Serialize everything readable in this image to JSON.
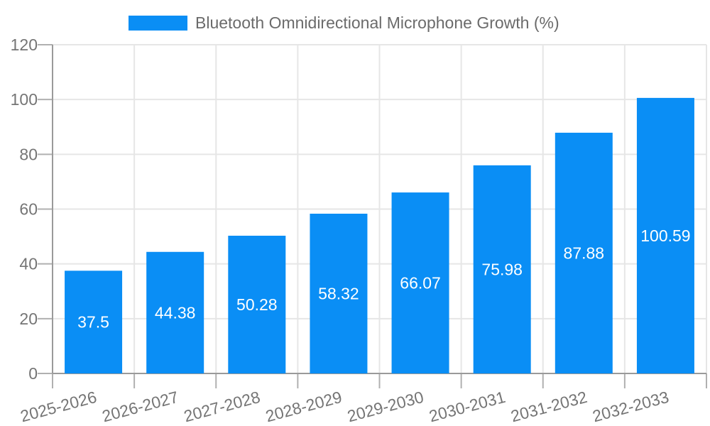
{
  "chart_data": {
    "type": "bar",
    "title": "Bluetooth Omnidirectional Microphone Growth (%)",
    "categories": [
      "2025-2026",
      "2026-2027",
      "2027-2028",
      "2028-2029",
      "2029-2030",
      "2030-2031",
      "2031-2032",
      "2032-2033"
    ],
    "values": [
      37.5,
      44.38,
      50.28,
      58.32,
      66.07,
      75.98,
      87.88,
      100.59
    ],
    "value_labels": [
      "37.5",
      "44.38",
      "50.28",
      "58.32",
      "66.07",
      "75.98",
      "87.88",
      "100.59"
    ],
    "yticks": [
      0,
      20,
      40,
      60,
      80,
      100,
      120
    ],
    "ylim": [
      0,
      120
    ],
    "xlabel": "",
    "ylabel": "",
    "grid": true,
    "legend_position": "top",
    "colors": {
      "bar": "#0a8ef5",
      "value_label": "#ffffff",
      "axis_text": "#757575",
      "legend_text": "#6b6b6b",
      "gridline": "#e6e6e6",
      "axis_line": "#9a9a9a",
      "tick": "#b0b0b0"
    }
  }
}
